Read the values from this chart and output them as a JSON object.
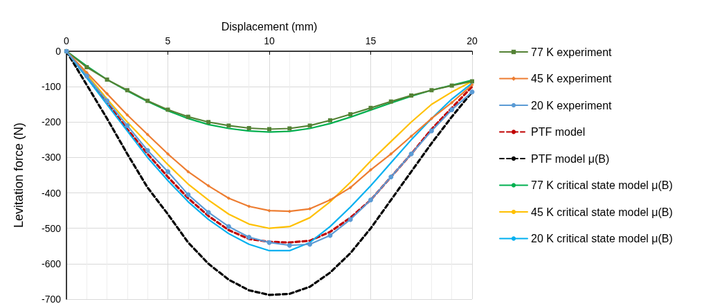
{
  "chart_data": {
    "type": "line",
    "xlabel": "Displacement (mm)",
    "ylabel": "Levitation force (N)",
    "x": [
      0,
      1,
      2,
      3,
      4,
      5,
      6,
      7,
      8,
      9,
      10,
      11,
      12,
      13,
      14,
      15,
      16,
      17,
      18,
      19,
      20
    ],
    "xlim": [
      0,
      20
    ],
    "xticks": [
      0,
      5,
      10,
      15,
      20
    ],
    "ylim": [
      -700,
      0
    ],
    "yticks": [
      -700,
      -600,
      -500,
      -400,
      -300,
      -200,
      -100,
      0
    ],
    "grid": true,
    "legend": "right",
    "series": [
      {
        "name": "77 K experiment",
        "color": "#548235",
        "marker": "square",
        "line_style": "solid",
        "values": [
          0,
          -45,
          -80,
          -110,
          -140,
          -165,
          -185,
          -200,
          -210,
          -217,
          -220,
          -218,
          -210,
          -195,
          -178,
          -160,
          -142,
          -125,
          -110,
          -97,
          -85
        ]
      },
      {
        "name": "45 K experiment",
        "color": "#ed7d31",
        "marker": "diamond",
        "line_style": "solid",
        "values": [
          0,
          -60,
          -120,
          -180,
          -235,
          -290,
          -340,
          -380,
          -415,
          -438,
          -450,
          -452,
          -445,
          -420,
          -385,
          -335,
          -290,
          -240,
          -190,
          -145,
          -95
        ]
      },
      {
        "name": "20 K experiment",
        "color": "#5b9bd5",
        "marker": "circle",
        "line_style": "solid",
        "values": [
          0,
          -70,
          -140,
          -210,
          -280,
          -340,
          -405,
          -455,
          -495,
          -525,
          -540,
          -548,
          -545,
          -520,
          -475,
          -420,
          -355,
          -290,
          -225,
          -165,
          -115
        ]
      },
      {
        "name": "PTF model",
        "color": "#c00000",
        "marker": "none",
        "line_style": "dashed",
        "values": [
          0,
          -70,
          -145,
          -220,
          -290,
          -355,
          -415,
          -465,
          -505,
          -530,
          -538,
          -540,
          -535,
          -510,
          -470,
          -420,
          -355,
          -290,
          -220,
          -160,
          -100
        ]
      },
      {
        "name": "PTF model μ(B)",
        "color": "#000000",
        "marker": "none",
        "line_style": "dashed",
        "values": [
          0,
          -95,
          -190,
          -290,
          -385,
          -460,
          -540,
          -600,
          -645,
          -675,
          -688,
          -685,
          -665,
          -625,
          -570,
          -500,
          -420,
          -340,
          -260,
          -185,
          -115
        ]
      },
      {
        "name": "77 K critical state model μ(B)",
        "color": "#00b050",
        "marker": "none",
        "line_style": "solid",
        "values": [
          0,
          -42,
          -80,
          -112,
          -142,
          -168,
          -190,
          -207,
          -218,
          -225,
          -228,
          -226,
          -218,
          -204,
          -186,
          -166,
          -146,
          -127,
          -110,
          -96,
          -82
        ]
      },
      {
        "name": "45 K critical state model μ(B)",
        "color": "#ffc000",
        "marker": "none",
        "line_style": "solid",
        "values": [
          0,
          -65,
          -135,
          -200,
          -260,
          -320,
          -375,
          -420,
          -460,
          -488,
          -500,
          -495,
          -470,
          -425,
          -370,
          -310,
          -255,
          -200,
          -150,
          -115,
          -85
        ]
      },
      {
        "name": "20 K critical state model μ(B)",
        "color": "#00b0f0",
        "marker": "none",
        "line_style": "solid",
        "values": [
          0,
          -75,
          -150,
          -225,
          -300,
          -365,
          -425,
          -475,
          -515,
          -545,
          -563,
          -563,
          -540,
          -495,
          -440,
          -380,
          -315,
          -250,
          -190,
          -135,
          -90
        ]
      }
    ]
  }
}
